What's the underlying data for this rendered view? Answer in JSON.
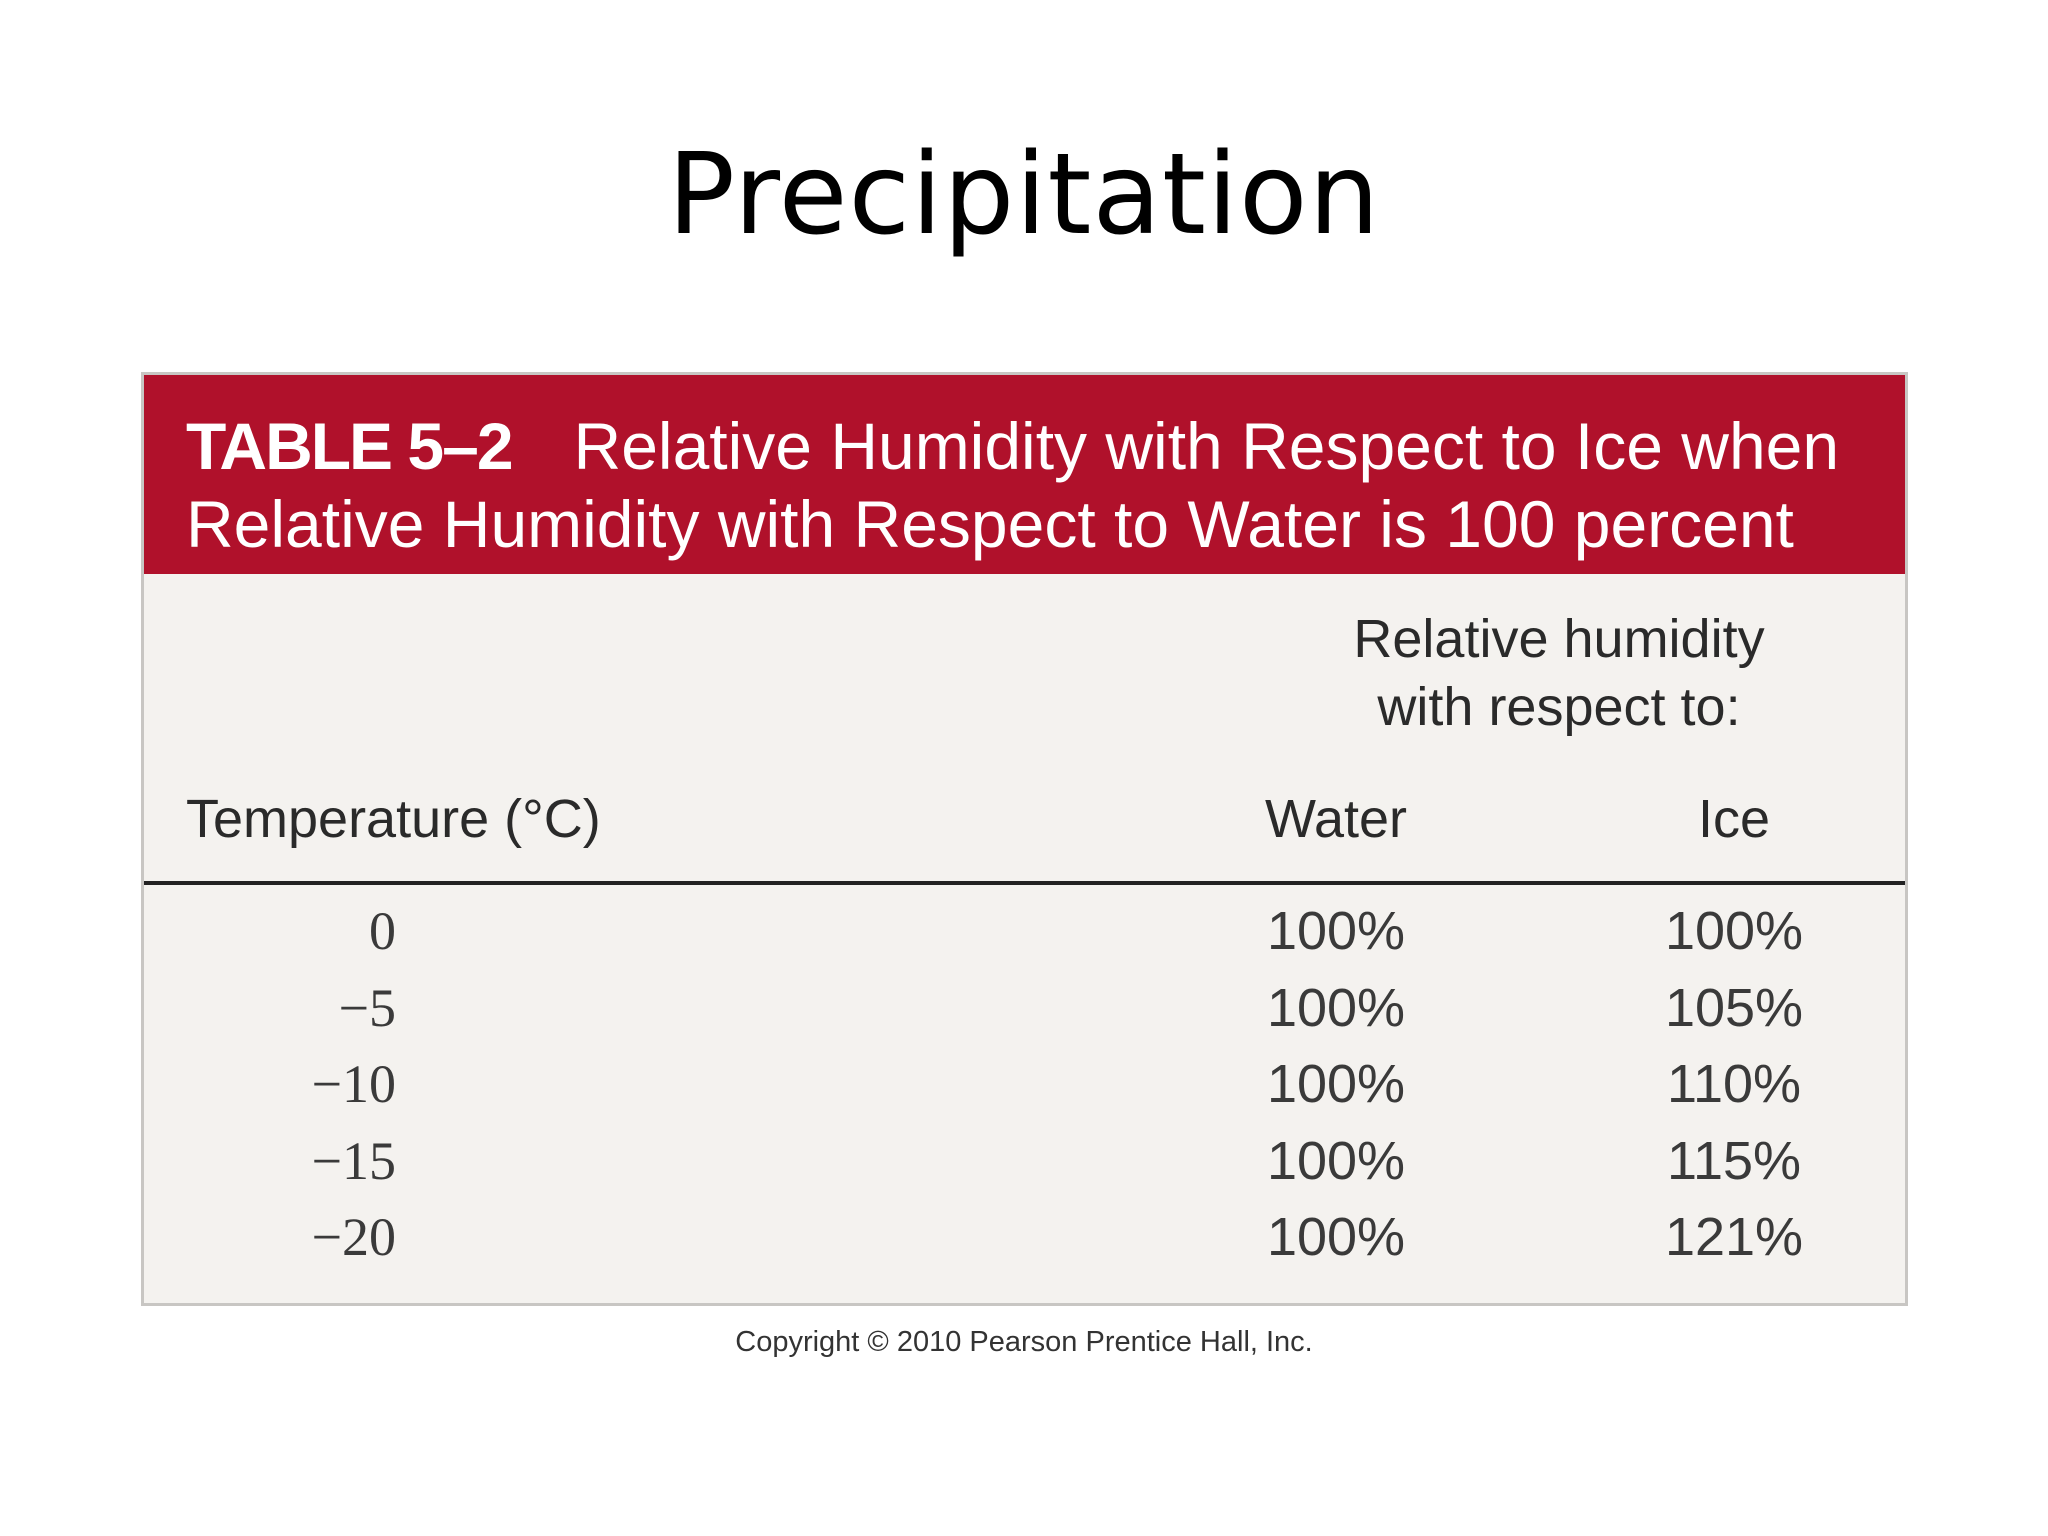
{
  "slide": {
    "title": "Precipitation"
  },
  "table": {
    "number": "TABLE 5–2",
    "title_line1": "Relative Humidity with Respect to Ice when",
    "title_line2": "Relative Humidity with Respect to Water is 100 percent",
    "subhead_line1": "Relative humidity",
    "subhead_line2": "with respect to:",
    "columns": {
      "temperature": "Temperature (°C)",
      "water": "Water",
      "ice": "Ice"
    },
    "rows": [
      {
        "temperature": "0",
        "water": "100%",
        "ice": "100%"
      },
      {
        "temperature": "−5",
        "water": "100%",
        "ice": "105%"
      },
      {
        "temperature": "−10",
        "water": "100%",
        "ice": "110%"
      },
      {
        "temperature": "−15",
        "water": "100%",
        "ice": "115%"
      },
      {
        "temperature": "−20",
        "water": "100%",
        "ice": "121%"
      }
    ],
    "header_color": "#b0112b",
    "body_color": "#f4f2ef"
  },
  "copyright": "Copyright © 2010 Pearson Prentice Hall, Inc."
}
